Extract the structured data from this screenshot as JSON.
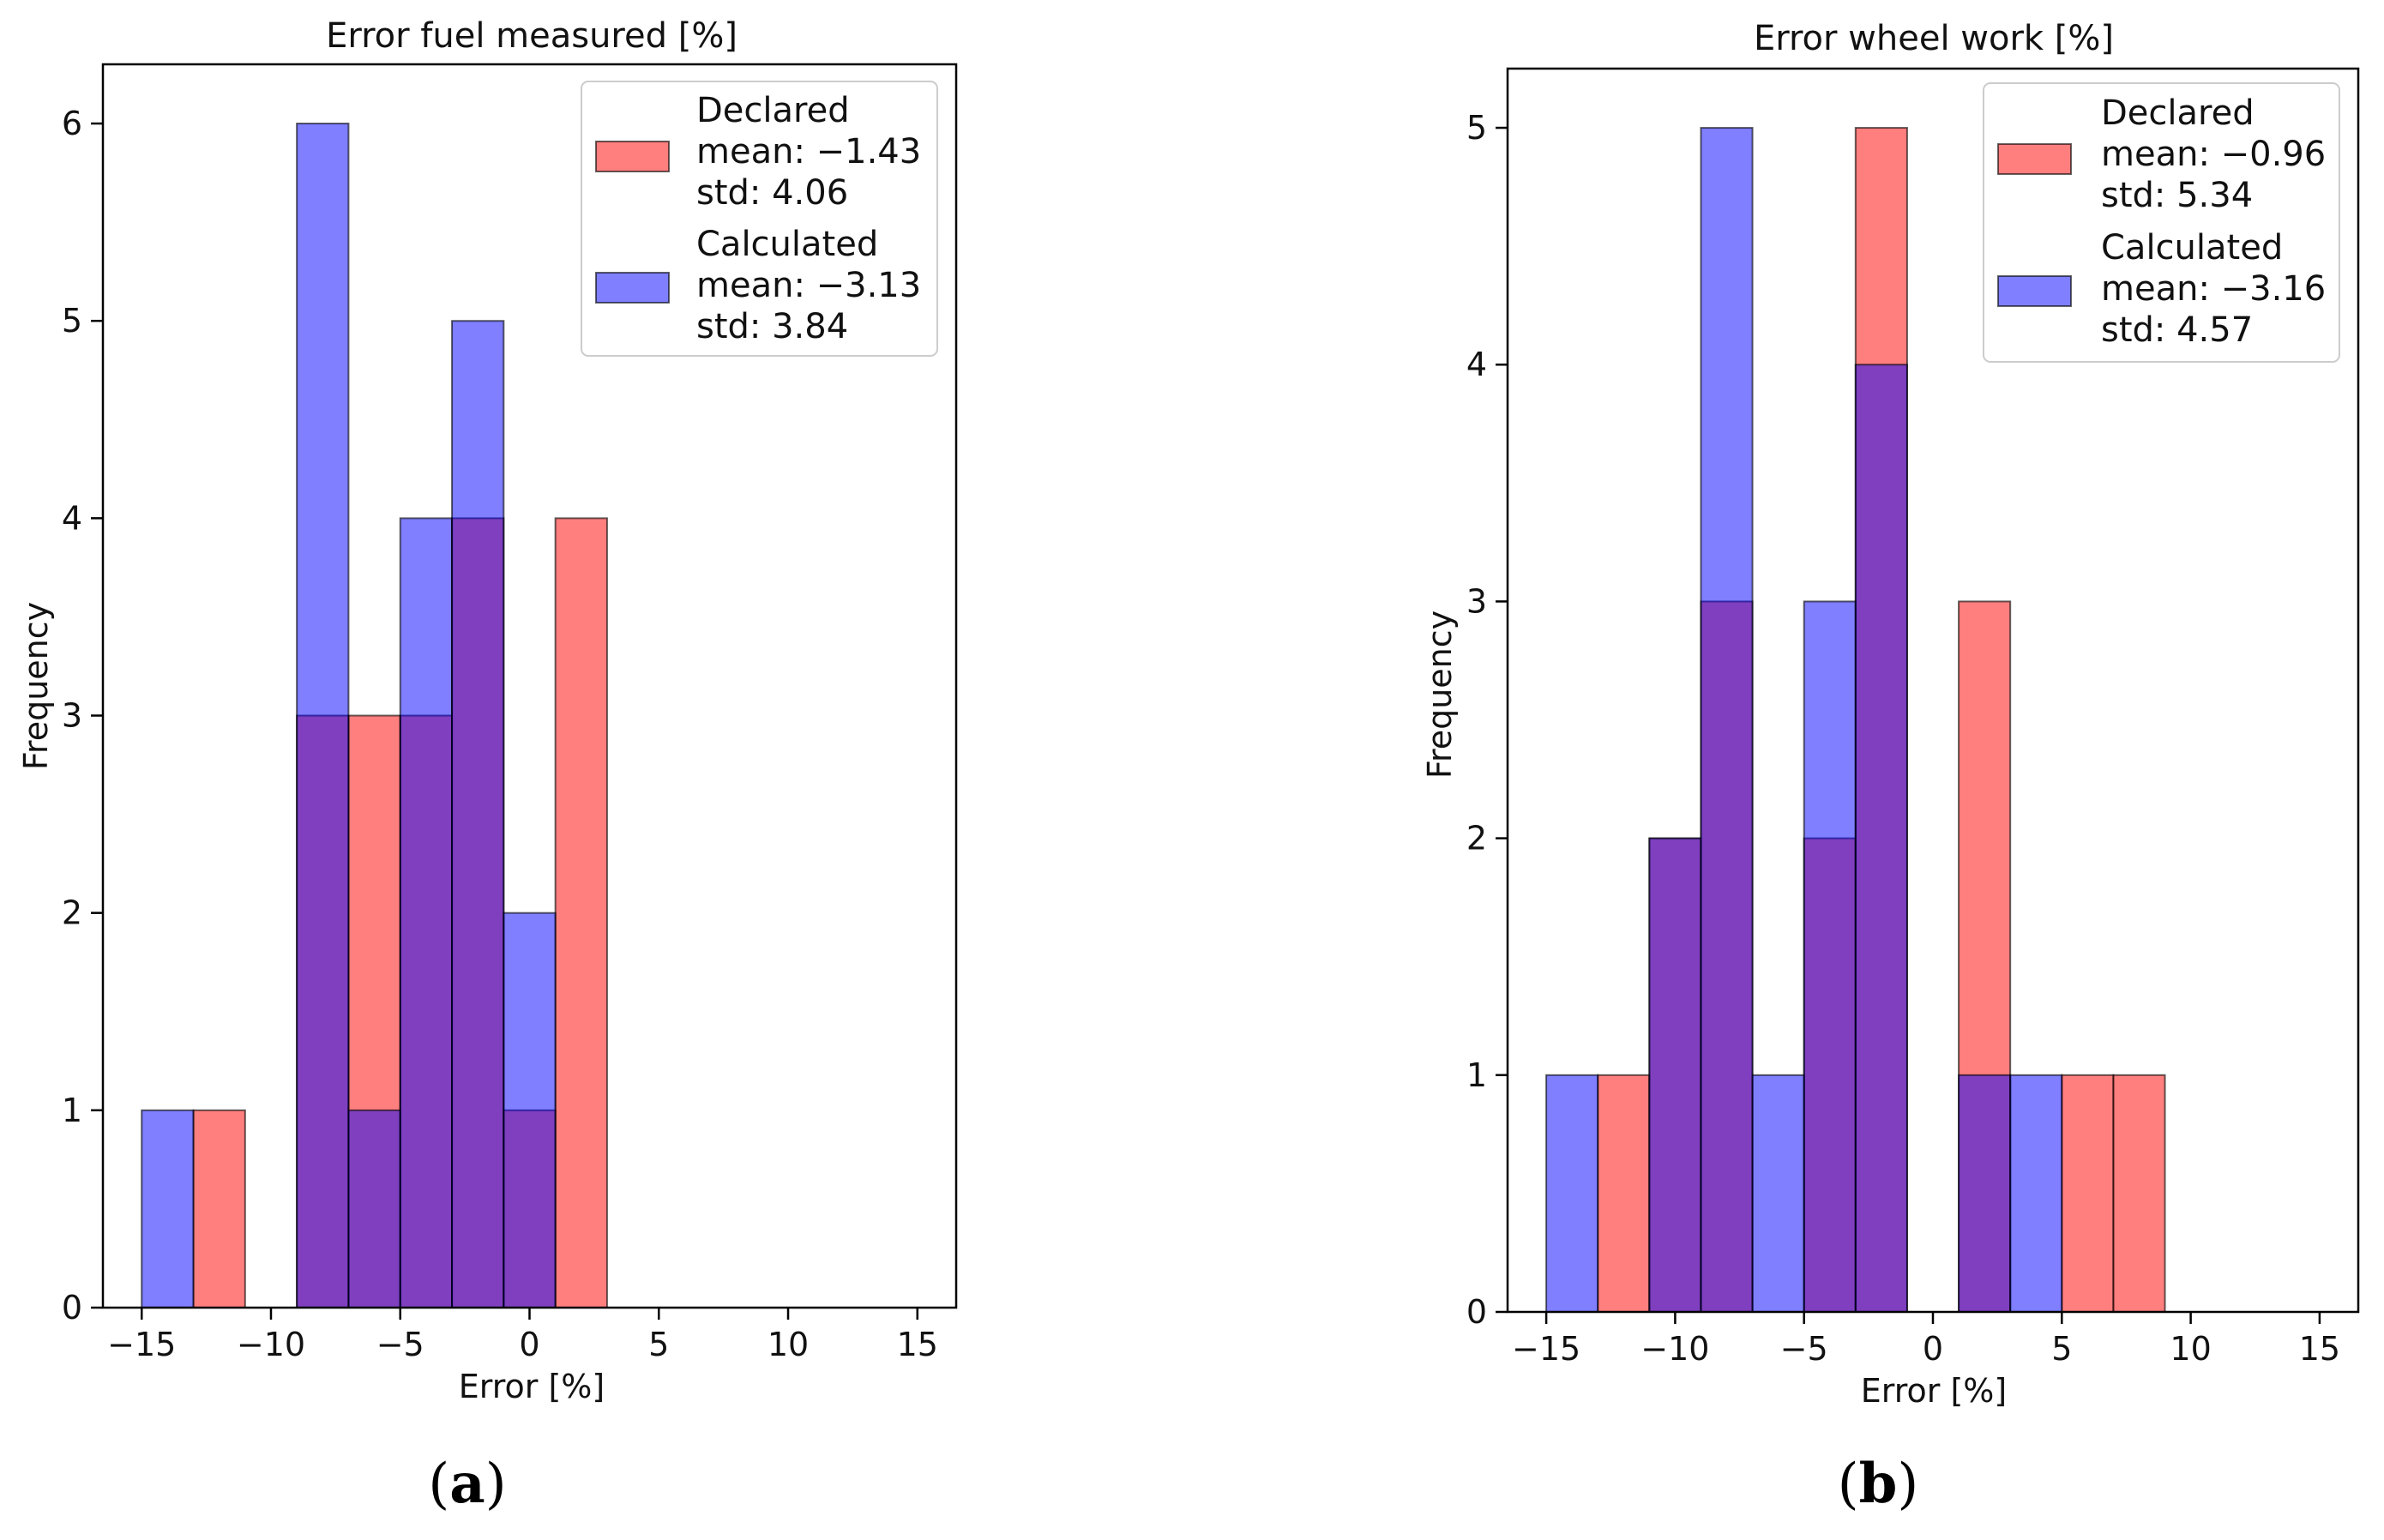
{
  "chart_data": [
    {
      "type": "bar",
      "panel_label": "(a)",
      "panel_letter": "a",
      "title": "Error fuel measured [%]",
      "xlabel": "Error [%]",
      "ylabel": "Frequency",
      "xlim": [
        -16.5,
        16.5
      ],
      "ylim": [
        0,
        6.3
      ],
      "xticks": [
        -15,
        -10,
        -5,
        0,
        5,
        10,
        15
      ],
      "xtick_labels": [
        "−15",
        "−10",
        "−5",
        "0",
        "5",
        "10",
        "15"
      ],
      "yticks": [
        0,
        1,
        2,
        3,
        4,
        5,
        6
      ],
      "ytick_labels": [
        "0",
        "1",
        "2",
        "3",
        "4",
        "5",
        "6"
      ],
      "bin_edges": [
        -15,
        -13,
        -11,
        -9,
        -7,
        -5,
        -3,
        -1,
        1,
        3,
        5,
        7,
        9,
        11,
        13,
        15
      ],
      "legend_position": "top-right",
      "series": [
        {
          "name": "Declared",
          "legend_lines": [
            "Declared",
            "mean: −1.43",
            "std: 4.06"
          ],
          "mean": -1.43,
          "std": 4.06,
          "color": "#ff0000",
          "counts": [
            0,
            1,
            0,
            3,
            3,
            3,
            4,
            1,
            4,
            0,
            0,
            0,
            0,
            0,
            0
          ]
        },
        {
          "name": "Calculated",
          "legend_lines": [
            "Calculated",
            "mean: −3.13",
            "std: 3.84"
          ],
          "mean": -3.13,
          "std": 3.84,
          "color": "#0000ff",
          "counts": [
            1,
            0,
            0,
            6,
            1,
            4,
            5,
            2,
            0,
            0,
            0,
            0,
            0,
            0,
            0
          ]
        }
      ]
    },
    {
      "type": "bar",
      "panel_label": "(b)",
      "panel_letter": "b",
      "title": "Error wheel work [%]",
      "xlabel": "Error [%]",
      "ylabel": "Frequency",
      "xlim": [
        -16.5,
        16.5
      ],
      "ylim": [
        0,
        5.25
      ],
      "xticks": [
        -15,
        -10,
        -5,
        0,
        5,
        10,
        15
      ],
      "xtick_labels": [
        "−15",
        "−10",
        "−5",
        "0",
        "5",
        "10",
        "15"
      ],
      "yticks": [
        0,
        1,
        2,
        3,
        4,
        5
      ],
      "ytick_labels": [
        "0",
        "1",
        "2",
        "3",
        "4",
        "5"
      ],
      "bin_edges": [
        -15,
        -13,
        -11,
        -9,
        -7,
        -5,
        -3,
        -1,
        1,
        3,
        5,
        7,
        9,
        11,
        13,
        15
      ],
      "legend_position": "top-right",
      "series": [
        {
          "name": "Declared",
          "legend_lines": [
            "Declared",
            "mean: −0.96",
            "std: 5.34"
          ],
          "mean": -0.96,
          "std": 5.34,
          "color": "#ff0000",
          "counts": [
            0,
            1,
            2,
            3,
            0,
            2,
            5,
            0,
            3,
            0,
            1,
            1,
            0,
            0,
            0
          ]
        },
        {
          "name": "Calculated",
          "legend_lines": [
            "Calculated",
            "mean: −3.16",
            "std: 4.57"
          ],
          "mean": -3.16,
          "std": 4.57,
          "color": "#0000ff",
          "counts": [
            1,
            0,
            2,
            5,
            1,
            3,
            4,
            0,
            1,
            1,
            0,
            0,
            0,
            0,
            0
          ]
        }
      ]
    }
  ]
}
